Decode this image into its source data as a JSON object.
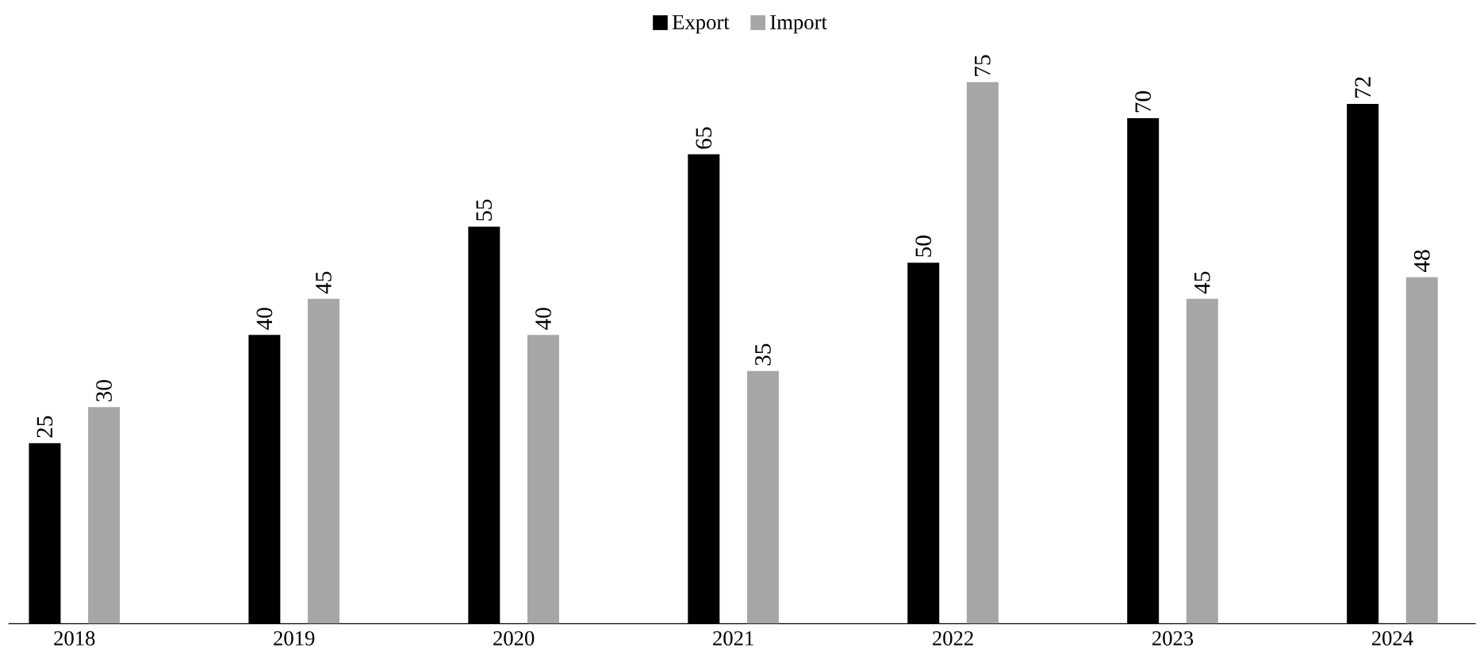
{
  "chart_data": {
    "type": "bar",
    "categories": [
      "2018",
      "2019",
      "2020",
      "2021",
      "2022",
      "2023",
      "2024"
    ],
    "series": [
      {
        "name": "Export",
        "color": "#000000",
        "values": [
          25,
          40,
          55,
          65,
          50,
          70,
          72
        ]
      },
      {
        "name": "Import",
        "color": "#a6a6a6",
        "values": [
          30,
          45,
          40,
          35,
          75,
          45,
          48
        ]
      }
    ],
    "data_labels": true,
    "legend": "top",
    "grid": false
  }
}
